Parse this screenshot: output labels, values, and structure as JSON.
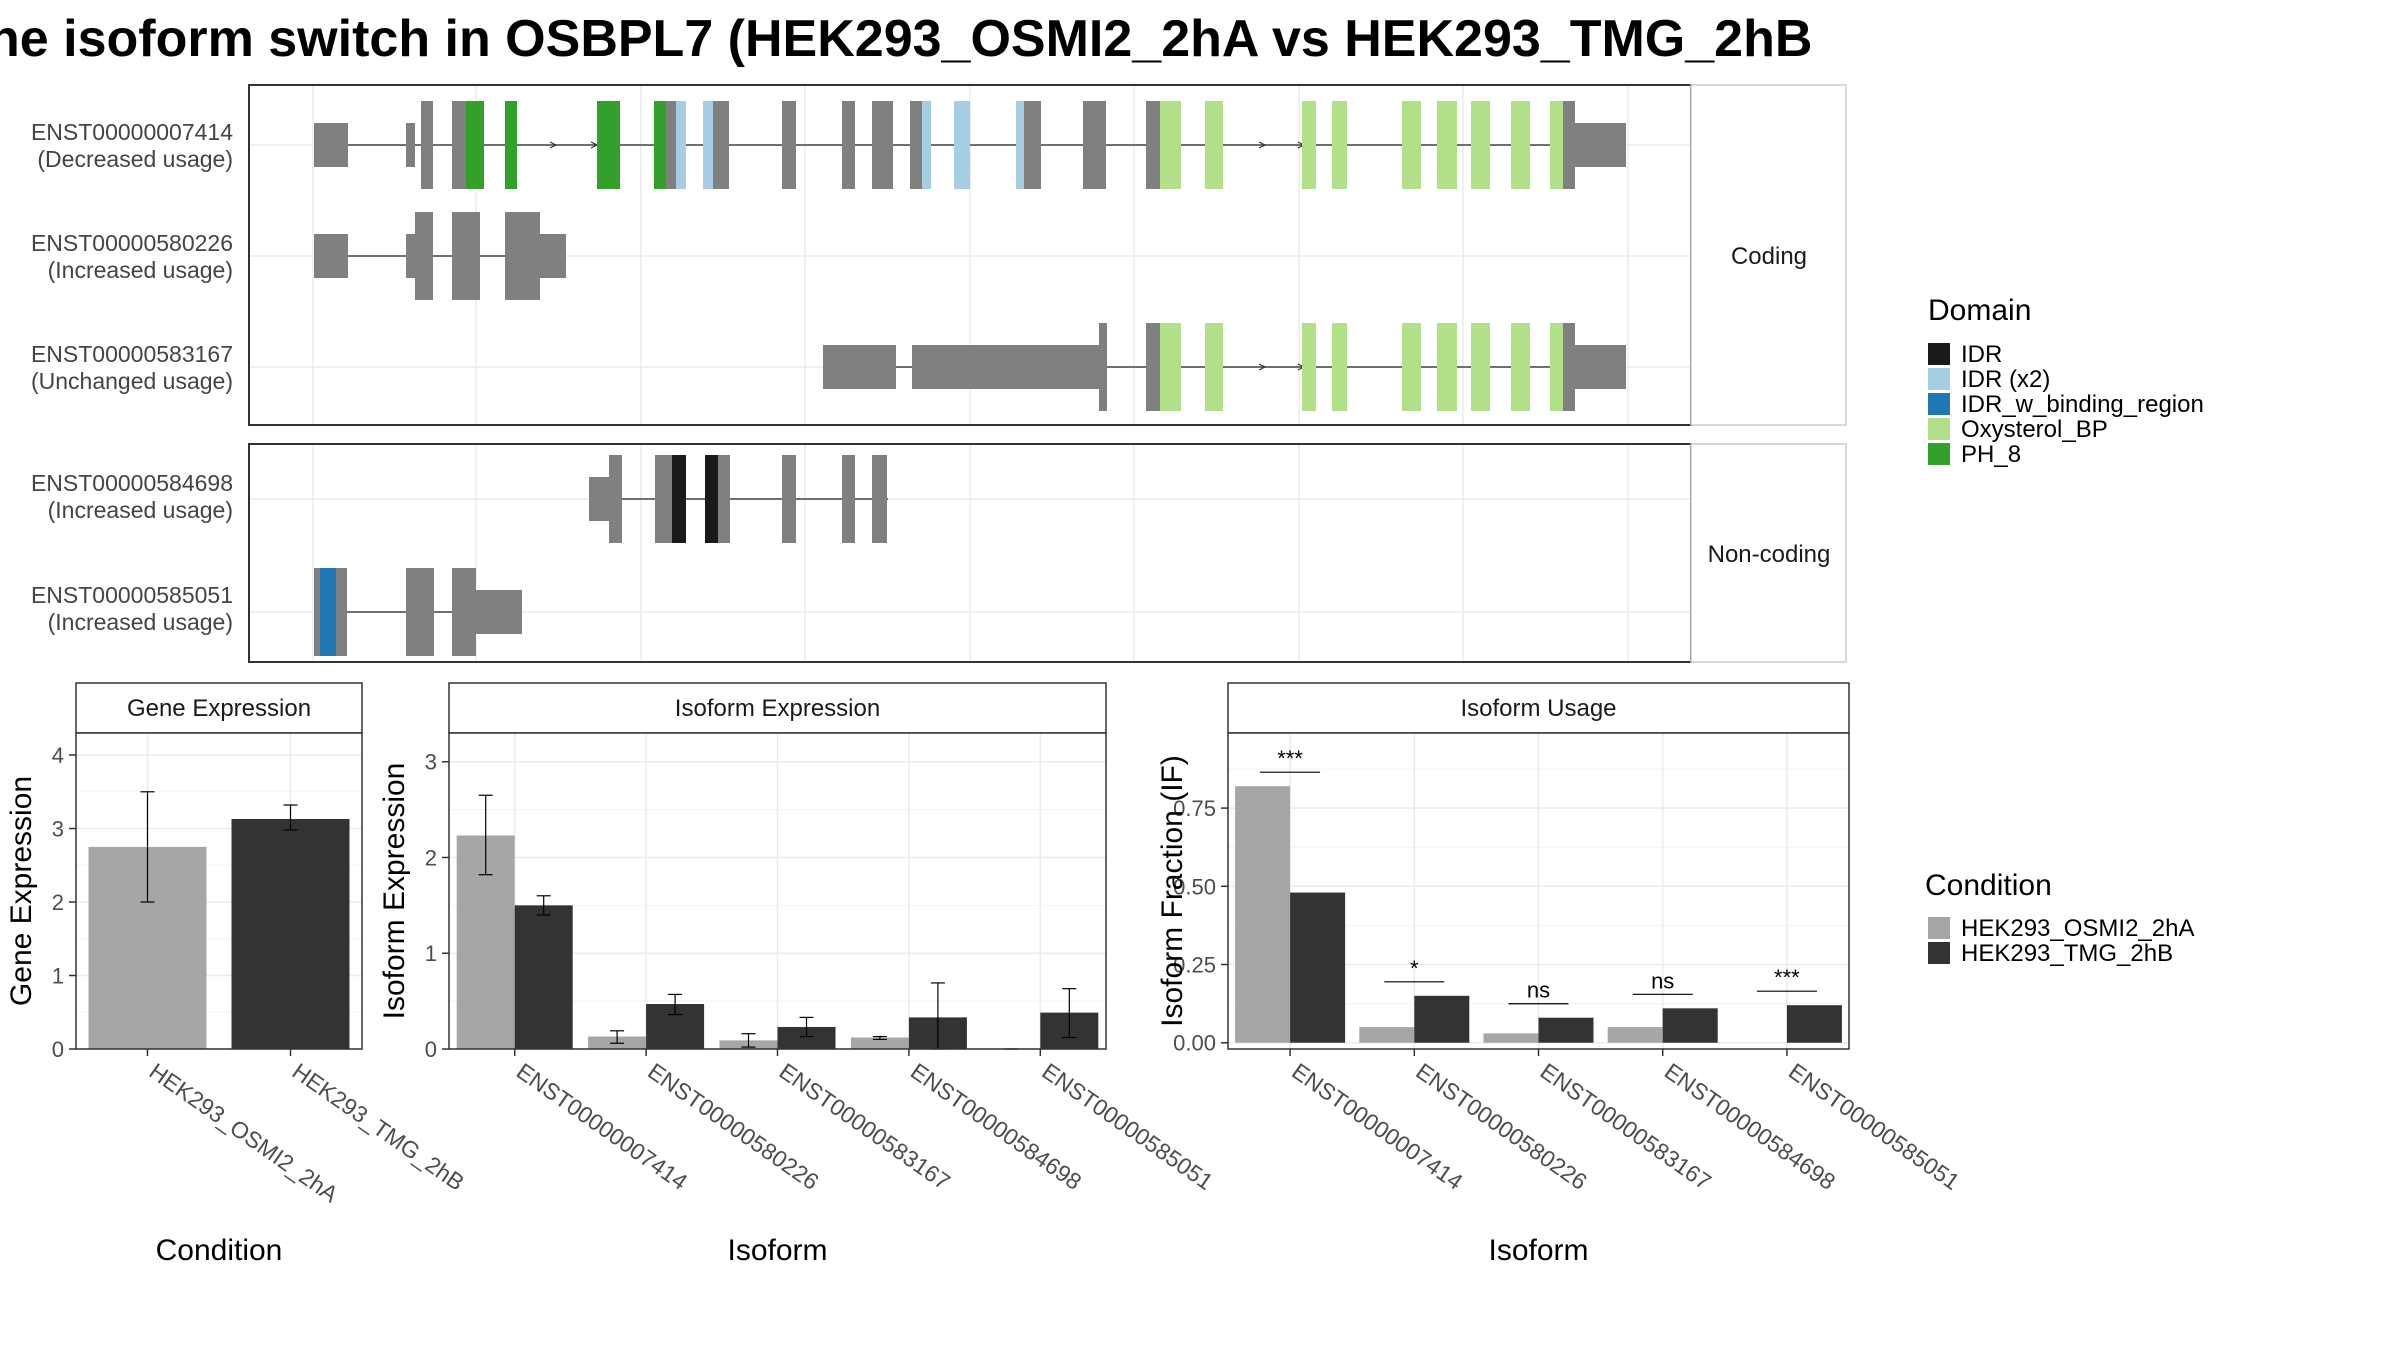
{
  "title": "ne isoform switch in OSBPL7 (HEK293_OSMI2_2hA vs HEK293_TMG_2hB",
  "structure": {
    "groups": [
      {
        "label": "Coding",
        "transcripts": [
          {
            "id": "ENST00000007414",
            "usage": "(Decreased usage)"
          },
          {
            "id": "ENST00000580226",
            "usage": "(Increased usage)"
          },
          {
            "id": "ENST00000583167",
            "usage": "(Unchanged usage)"
          }
        ]
      },
      {
        "label": "Non-coding",
        "transcripts": [
          {
            "id": "ENST00000584698",
            "usage": "(Increased usage)"
          },
          {
            "id": "ENST00000585051",
            "usage": "(Increased usage)"
          }
        ]
      }
    ]
  },
  "legend_domain": {
    "title": "Domain",
    "items": [
      {
        "label": "IDR",
        "color": "#1a1a1a"
      },
      {
        "label": "IDR (x2)",
        "color": "#a6cee3"
      },
      {
        "label": "IDR_w_binding_region",
        "color": "#1f78b4"
      },
      {
        "label": "Oxysterol_BP",
        "color": "#b2df8a"
      },
      {
        "label": "PH_8",
        "color": "#33a02c"
      }
    ]
  },
  "legend_condition": {
    "title": "Condition",
    "items": [
      {
        "label": "HEK293_OSMI2_2hA",
        "color": "#a6a6a6"
      },
      {
        "label": "HEK293_TMG_2hB",
        "color": "#333333"
      }
    ]
  },
  "chart_data": [
    {
      "type": "bar",
      "title": "Gene Expression",
      "xlabel": "Condition",
      "ylabel": "Gene Expression",
      "ylim": [
        0,
        4.3
      ],
      "yticks": [
        0,
        1,
        2,
        3,
        4
      ],
      "categories": [
        "HEK293_OSMI2_2hA",
        "HEK293_TMG_2hB"
      ],
      "values": [
        2.75,
        3.13
      ],
      "errors": [
        [
          2.0,
          3.5
        ],
        [
          2.98,
          3.32
        ]
      ]
    },
    {
      "type": "bar",
      "title": "Isoform Expression",
      "xlabel": "Isoform",
      "ylabel": "Isoform Expression",
      "ylim": [
        0,
        3.3
      ],
      "yticks": [
        0,
        1,
        2,
        3
      ],
      "categories": [
        "ENST00000007414",
        "ENST00000580226",
        "ENST00000583167",
        "ENST00000584698",
        "ENST00000585051"
      ],
      "series": [
        {
          "name": "HEK293_OSMI2_2hA",
          "values": [
            2.23,
            0.13,
            0.09,
            0.12,
            0.0
          ],
          "errors": [
            [
              1.82,
              2.65
            ],
            [
              0.06,
              0.19
            ],
            [
              0.02,
              0.16
            ],
            [
              0.1,
              0.13
            ],
            [
              0.0,
              0.0
            ]
          ]
        },
        {
          "name": "HEK293_TMG_2hB",
          "values": [
            1.5,
            0.47,
            0.23,
            0.33,
            0.38
          ],
          "errors": [
            [
              1.4,
              1.6
            ],
            [
              0.36,
              0.57
            ],
            [
              0.13,
              0.33
            ],
            [
              0.0,
              0.69
            ],
            [
              0.12,
              0.63
            ]
          ]
        }
      ]
    },
    {
      "type": "bar",
      "title": "Isoform Usage",
      "xlabel": "Isoform",
      "ylabel": "Isoform Fraction (IF)",
      "ylim": [
        -0.02,
        0.99
      ],
      "yticks": [
        "0.00",
        "0.25",
        "0.50",
        "0.75"
      ],
      "categories": [
        "ENST00000007414",
        "ENST00000580226",
        "ENST00000583167",
        "ENST00000584698",
        "ENST00000585051"
      ],
      "series": [
        {
          "name": "HEK293_OSMI2_2hA",
          "values": [
            0.82,
            0.05,
            0.03,
            0.05,
            0.0
          ]
        },
        {
          "name": "HEK293_TMG_2hB",
          "values": [
            0.48,
            0.15,
            0.08,
            0.11,
            0.12
          ]
        }
      ],
      "significance": [
        "***",
        "*",
        "ns",
        "ns",
        "***"
      ]
    }
  ]
}
